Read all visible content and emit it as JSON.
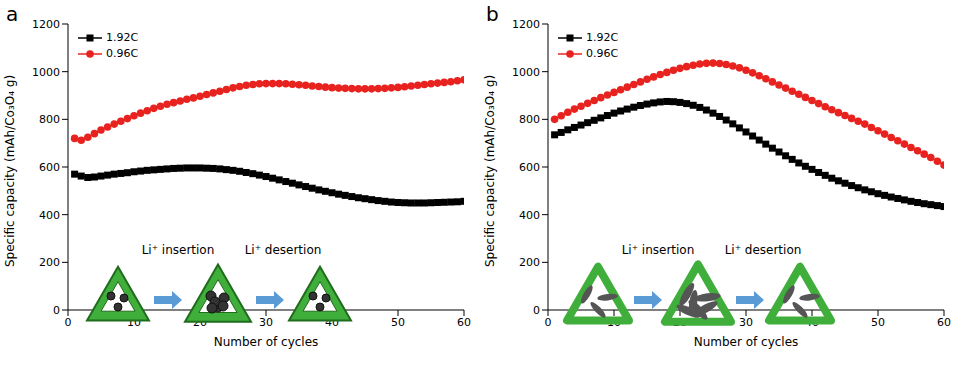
{
  "chart_data": [
    {
      "type": "line",
      "title": "a",
      "x_label": "Number of cycles",
      "y_label": "Specific capacity (mAh/Co₃O₄ g)",
      "xlim": [
        0,
        60
      ],
      "xticks": [
        0,
        10,
        20,
        30,
        40,
        50,
        60
      ],
      "ylim": [
        0,
        1200
      ],
      "yticks": [
        0,
        200,
        400,
        600,
        800,
        1000,
        1200
      ],
      "grid": false,
      "legend": "upper left",
      "annotations": [
        "Li⁺ insertion",
        "Li⁺ desertion"
      ],
      "x": [
        1,
        2,
        3,
        4,
        5,
        6,
        7,
        8,
        9,
        10,
        11,
        12,
        13,
        14,
        15,
        16,
        17,
        18,
        19,
        20,
        21,
        22,
        23,
        24,
        25,
        26,
        27,
        28,
        29,
        30,
        31,
        32,
        33,
        34,
        35,
        36,
        37,
        38,
        39,
        40,
        41,
        42,
        43,
        44,
        45,
        46,
        47,
        48,
        49,
        50,
        51,
        52,
        53,
        54,
        55,
        56,
        57,
        58,
        59,
        60
      ],
      "series": [
        {
          "name": "1.92C",
          "color": "#000000",
          "marker": "square",
          "values": [
            570,
            562,
            556,
            558,
            562,
            566,
            570,
            573,
            576,
            580,
            583,
            586,
            588,
            590,
            592,
            594,
            595,
            596,
            596,
            596,
            595,
            594,
            592,
            589,
            586,
            582,
            577,
            572,
            566,
            560,
            553,
            546,
            539,
            532,
            525,
            518,
            511,
            504,
            498,
            492,
            486,
            481,
            476,
            471,
            467,
            463,
            459,
            456,
            453,
            451,
            450,
            449,
            449,
            449,
            450,
            451,
            452,
            453,
            454,
            456
          ]
        },
        {
          "name": "0.96C",
          "color": "#e8231f",
          "marker": "circle",
          "values": [
            720,
            712,
            725,
            740,
            755,
            768,
            780,
            792,
            803,
            815,
            826,
            836,
            846,
            855,
            863,
            870,
            877,
            884,
            890,
            897,
            904,
            911,
            918,
            925,
            932,
            938,
            943,
            946,
            949,
            950,
            950,
            950,
            949,
            947,
            945,
            943,
            940,
            938,
            935,
            933,
            931,
            930,
            929,
            928,
            928,
            928,
            929,
            930,
            932,
            934,
            937,
            940,
            943,
            946,
            949,
            952,
            955,
            958,
            962,
            966
          ]
        }
      ]
    },
    {
      "type": "line",
      "title": "b",
      "x_label": "Number of cycles",
      "y_label": "Specific capacity (mAh/Co₃O₄ g)",
      "xlim": [
        0,
        60
      ],
      "xticks": [
        0,
        10,
        20,
        30,
        40,
        50,
        60
      ],
      "ylim": [
        0,
        1200
      ],
      "yticks": [
        0,
        200,
        400,
        600,
        800,
        1000,
        1200
      ],
      "grid": false,
      "legend": "upper left",
      "annotations": [
        "Li⁺ insertion",
        "Li⁺ desertion"
      ],
      "x": [
        1,
        2,
        3,
        4,
        5,
        6,
        7,
        8,
        9,
        10,
        11,
        12,
        13,
        14,
        15,
        16,
        17,
        18,
        19,
        20,
        21,
        22,
        23,
        24,
        25,
        26,
        27,
        28,
        29,
        30,
        31,
        32,
        33,
        34,
        35,
        36,
        37,
        38,
        39,
        40,
        41,
        42,
        43,
        44,
        45,
        46,
        47,
        48,
        49,
        50,
        51,
        52,
        53,
        54,
        55,
        56,
        57,
        58,
        59,
        60
      ],
      "series": [
        {
          "name": "1.92C",
          "color": "#000000",
          "marker": "square",
          "values": [
            735,
            745,
            756,
            766,
            776,
            786,
            796,
            806,
            816,
            826,
            835,
            843,
            851,
            858,
            864,
            869,
            873,
            875,
            874,
            871,
            866,
            859,
            850,
            839,
            826,
            812,
            797,
            781,
            764,
            747,
            730,
            713,
            696,
            679,
            663,
            647,
            632,
            617,
            603,
            590,
            577,
            565,
            553,
            542,
            532,
            522,
            513,
            504,
            496,
            488,
            481,
            474,
            468,
            462,
            456,
            451,
            446,
            442,
            438,
            434
          ]
        },
        {
          "name": "0.96C",
          "color": "#e8231f",
          "marker": "circle",
          "values": [
            800,
            815,
            830,
            843,
            855,
            867,
            879,
            891,
            902,
            913,
            924,
            935,
            946,
            957,
            968,
            978,
            988,
            997,
            1006,
            1014,
            1021,
            1027,
            1032,
            1035,
            1036,
            1034,
            1030,
            1024,
            1016,
            1006,
            995,
            983,
            970,
            957,
            944,
            931,
            918,
            905,
            892,
            879,
            866,
            853,
            840,
            828,
            816,
            804,
            792,
            780,
            766,
            752,
            738,
            724,
            710,
            696,
            682,
            668,
            654,
            640,
            624,
            608
          ]
        }
      ]
    }
  ]
}
